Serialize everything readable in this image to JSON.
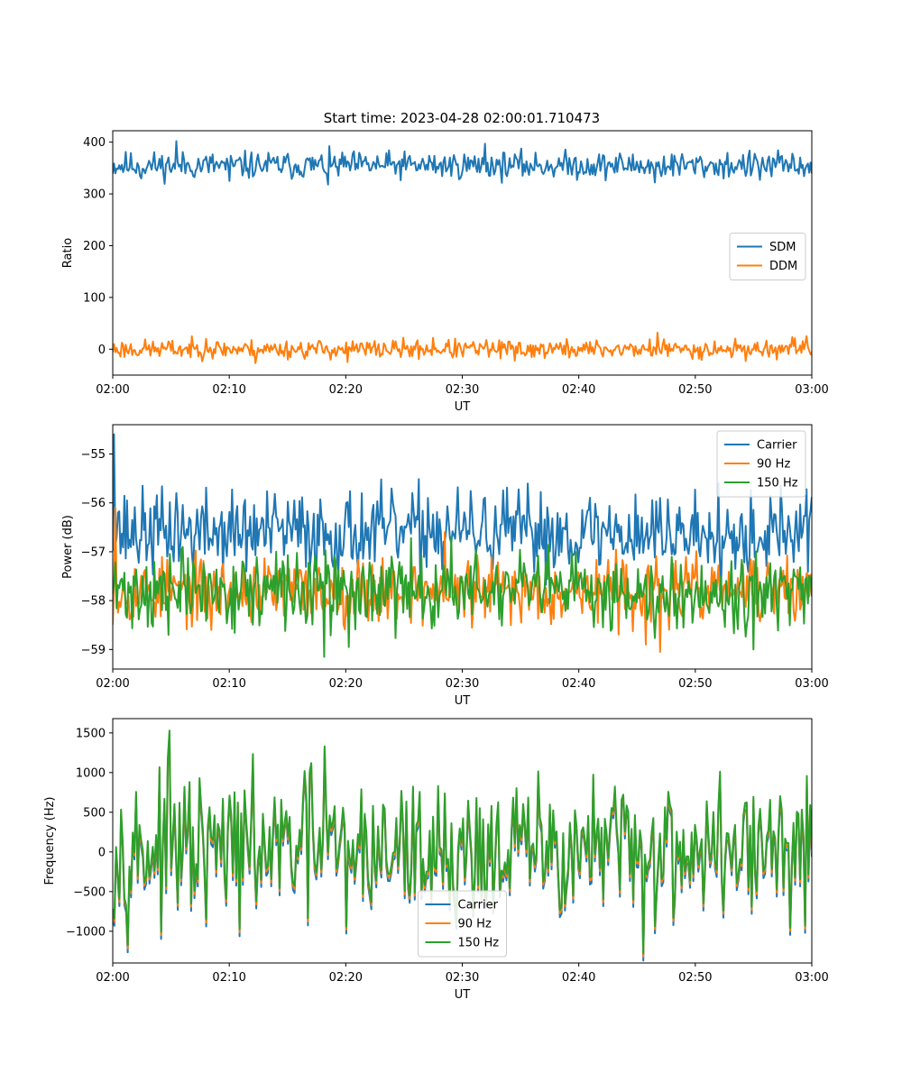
{
  "figure_title": "Start time: 2023-04-28 02:00:01.710473",
  "colors": {
    "blue": "#1f77b4",
    "orange": "#ff7f0e",
    "green": "#2ca02c"
  },
  "chart_data": [
    {
      "type": "line",
      "title": "Start time: 2023-04-28 02:00:01.710473",
      "xlabel": "UT",
      "ylabel": "Ratio",
      "xlim": [
        0,
        60
      ],
      "ylim": [
        -50,
        422
      ],
      "xtick_labels": [
        "02:00",
        "02:10",
        "02:20",
        "02:30",
        "02:40",
        "02:50",
        "03:00"
      ],
      "yticks": [
        0,
        100,
        200,
        300,
        400
      ],
      "ytick_labels": [
        "0",
        "100",
        "200",
        "300",
        "400"
      ],
      "legend_position": "center-right",
      "grid": false,
      "series": [
        {
          "name": "SDM",
          "color": "#1f77b4",
          "generator": {
            "n": 540,
            "base": 355,
            "amp": 13,
            "seed": 11
          },
          "spikes": [
            [
              5.5,
              402
            ],
            [
              2.5,
              330
            ],
            [
              32.0,
              397
            ],
            [
              18.5,
              318
            ],
            [
              46.5,
              322
            ],
            [
              10.0,
              325
            ],
            [
              55.5,
              327
            ]
          ]
        },
        {
          "name": "DDM",
          "color": "#ff7f0e",
          "generator": {
            "n": 540,
            "base": 0,
            "amp": 9,
            "seed": 23
          },
          "spikes": [
            [
              46.8,
              32
            ],
            [
              12.3,
              -27
            ],
            [
              20.1,
              -25
            ],
            [
              27.5,
              22
            ],
            [
              34.5,
              -22
            ],
            [
              59.5,
              25
            ],
            [
              8.0,
              20
            ]
          ]
        }
      ]
    },
    {
      "type": "line",
      "title": "",
      "xlabel": "UT",
      "ylabel": "Power (dB)",
      "xlim": [
        0,
        60
      ],
      "ylim": [
        -59.4,
        -54.4
      ],
      "xtick_labels": [
        "02:00",
        "02:10",
        "02:20",
        "02:30",
        "02:40",
        "02:50",
        "03:00"
      ],
      "yticks": [
        -59,
        -58,
        -57,
        -56,
        -55
      ],
      "ytick_labels": [
        "−59",
        "−58",
        "−57",
        "−56",
        "−55"
      ],
      "legend_position": "top-right",
      "grid": false,
      "series": [
        {
          "name": "Carrier",
          "color": "#1f77b4",
          "generator": {
            "n": 540,
            "base": -56.6,
            "amp": 0.42,
            "seed": 37
          },
          "spikes": [
            [
              0.15,
              -54.6
            ],
            [
              0.5,
              -56.2
            ],
            [
              5.5,
              -55.8
            ],
            [
              27.0,
              -55.9
            ],
            [
              52.0,
              -55.6
            ],
            [
              11.5,
              -57.4
            ]
          ]
        },
        {
          "name": "90 Hz",
          "color": "#ff7f0e",
          "generator": {
            "n": 540,
            "base": -57.8,
            "amp": 0.33,
            "seed": 53
          },
          "spikes": [
            [
              0.2,
              -56.1
            ],
            [
              47.0,
              -59.05
            ],
            [
              8.5,
              -58.6
            ],
            [
              28.5,
              -56.6
            ],
            [
              45.8,
              -58.9
            ]
          ]
        },
        {
          "name": "150 Hz",
          "color": "#2ca02c",
          "generator": {
            "n": 540,
            "base": -57.8,
            "amp": 0.38,
            "seed": 71
          },
          "spikes": [
            [
              18.2,
              -59.15
            ],
            [
              4.8,
              -58.7
            ],
            [
              20.3,
              -58.95
            ],
            [
              55.0,
              -59.0
            ],
            [
              6.0,
              -56.9
            ],
            [
              29.0,
              -56.7
            ]
          ]
        }
      ]
    },
    {
      "type": "line",
      "title": "",
      "xlabel": "UT",
      "ylabel": "Frequency (Hz)",
      "xlim": [
        0,
        60
      ],
      "ylim": [
        -1400,
        1680
      ],
      "xtick_labels": [
        "02:00",
        "02:10",
        "02:20",
        "02:30",
        "02:40",
        "02:50",
        "03:00"
      ],
      "yticks": [
        -1000,
        -500,
        0,
        500,
        1000,
        1500
      ],
      "ytick_labels": [
        "−1000",
        "−500",
        "0",
        "500",
        "1000",
        "1500"
      ],
      "legend_position": "lower-center",
      "grid": false,
      "series": [
        {
          "name": "Carrier",
          "color": "#1f77b4",
          "offset": -90,
          "generator": {
            "n": 420,
            "base": 50,
            "amp": 420,
            "seed": 97
          },
          "spikes": [
            [
              4.85,
              1530
            ],
            [
              18.2,
              1330
            ],
            [
              45.5,
              -1280
            ],
            [
              17.0,
              1120
            ],
            [
              20.0,
              -940
            ],
            [
              29.5,
              -880
            ],
            [
              59.4,
              -930
            ],
            [
              8.0,
              -850
            ]
          ]
        },
        {
          "name": "90 Hz",
          "color": "#ff7f0e",
          "offset": -40,
          "generator": {
            "n": 420,
            "base": 50,
            "amp": 420,
            "seed": 97
          },
          "spikes": [
            [
              4.85,
              1530
            ],
            [
              18.2,
              1330
            ],
            [
              45.5,
              -1280
            ],
            [
              17.0,
              1120
            ],
            [
              20.0,
              -940
            ],
            [
              29.5,
              -880
            ],
            [
              59.4,
              -930
            ],
            [
              8.0,
              -850
            ]
          ]
        },
        {
          "name": "150 Hz",
          "color": "#2ca02c",
          "offset": 0,
          "generator": {
            "n": 420,
            "base": 50,
            "amp": 420,
            "seed": 97
          },
          "spikes": [
            [
              4.85,
              1530
            ],
            [
              18.2,
              1330
            ],
            [
              45.5,
              -1280
            ],
            [
              17.0,
              1120
            ],
            [
              20.0,
              -940
            ],
            [
              29.5,
              -880
            ],
            [
              59.4,
              -930
            ],
            [
              8.0,
              -850
            ]
          ]
        }
      ]
    }
  ]
}
